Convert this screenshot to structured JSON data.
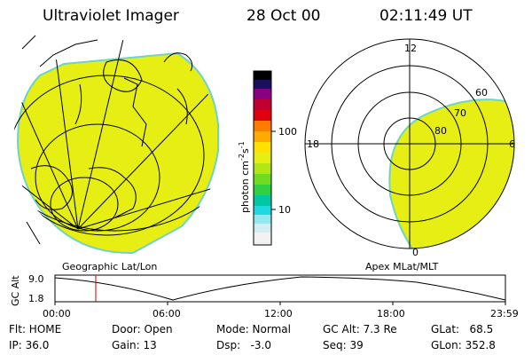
{
  "header": {
    "instrument": "Ultraviolet Imager",
    "date": "28 Oct 00",
    "time": "02:11:49 UT"
  },
  "panels": {
    "left_label": "Geographic Lat/Lon",
    "right_label": "Apex MLat/MLT"
  },
  "colorbar": {
    "unit_label": "photon cm",
    "unit_exp1": "-2",
    "unit_mid": "s",
    "unit_exp2": "-1",
    "tick_100": "100",
    "tick_10": "10"
  },
  "polar": {
    "mlt_12": "12",
    "mlt_18": "18",
    "mlt_6": "6",
    "mlt_0": "0",
    "lat_60": "60",
    "lat_70": "70",
    "lat_80": "80"
  },
  "altitude_plot": {
    "ylabel": "GC Alt",
    "ytick_top": "9.0",
    "ytick_bottom": "1.8",
    "xticks": [
      "00:00",
      "06:00",
      "12:00",
      "18:00",
      "23:59"
    ],
    "current_time_marker": "02:11:49"
  },
  "status": {
    "flt": "Flt: HOME",
    "ip": "IP: 36.0",
    "door": "Door: Open",
    "gain": "Gain: 13",
    "mode": "Mode: Normal",
    "dsp": "Dsp:   -3.0",
    "gc_alt": "GC Alt: 7.3 Re",
    "seq": "Seq: 39",
    "glat": "GLat:   68.5",
    "glon": "GLon: 352.8"
  },
  "colors": {
    "image_fill": "#e6ee14",
    "image_edge": "#6fd3c8",
    "marker": "#cc0000"
  }
}
